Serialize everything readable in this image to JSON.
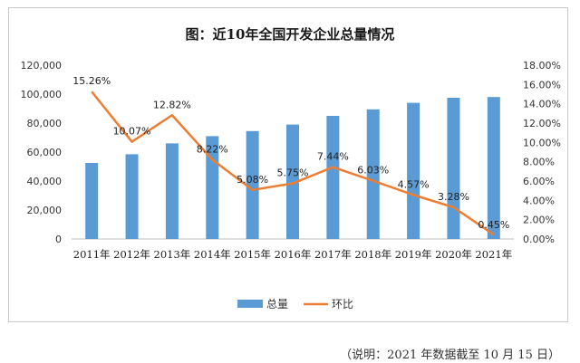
{
  "chart_data": {
    "type": "bar+line",
    "title": "图：近10年全国开发企业总量情况",
    "categories": [
      "2011年",
      "2012年",
      "2013年",
      "2014年",
      "2015年",
      "2016年",
      "2017年",
      "2018年",
      "2019年",
      "2020年",
      "2021年"
    ],
    "series": [
      {
        "name": "总量",
        "type": "bar",
        "axis": "left",
        "values": [
          52500,
          58500,
          66000,
          71000,
          74500,
          79000,
          85000,
          89500,
          94000,
          97500,
          98000
        ],
        "color": "#5b9bd5"
      },
      {
        "name": "环比",
        "type": "line",
        "axis": "right",
        "values": [
          15.26,
          10.07,
          12.82,
          8.22,
          5.08,
          5.75,
          7.44,
          6.03,
          4.57,
          3.28,
          0.45
        ],
        "labels": [
          "15.26%",
          "10.07%",
          "12.82%",
          "8.22%",
          "5.08%",
          "5.75%",
          "7.44%",
          "6.03%",
          "4.57%",
          "3.28%",
          "0.45%"
        ],
        "color": "#ed7d31"
      }
    ],
    "left_axis": {
      "ylim": [
        0,
        120000
      ],
      "ticks": [
        "0",
        "20,000",
        "40,000",
        "60,000",
        "80,000",
        "100,000",
        "120,000"
      ]
    },
    "right_axis": {
      "ylim": [
        0,
        18
      ],
      "ticks": [
        "0.00%",
        "2.00%",
        "4.00%",
        "6.00%",
        "8.00%",
        "10.00%",
        "12.00%",
        "14.00%",
        "16.00%",
        "18.00%"
      ]
    },
    "legend": {
      "position": "bottom",
      "items": [
        "总量",
        "环比"
      ]
    },
    "grid": false
  },
  "note": "（说明：2021 年数据截至 10 月 15 日）"
}
